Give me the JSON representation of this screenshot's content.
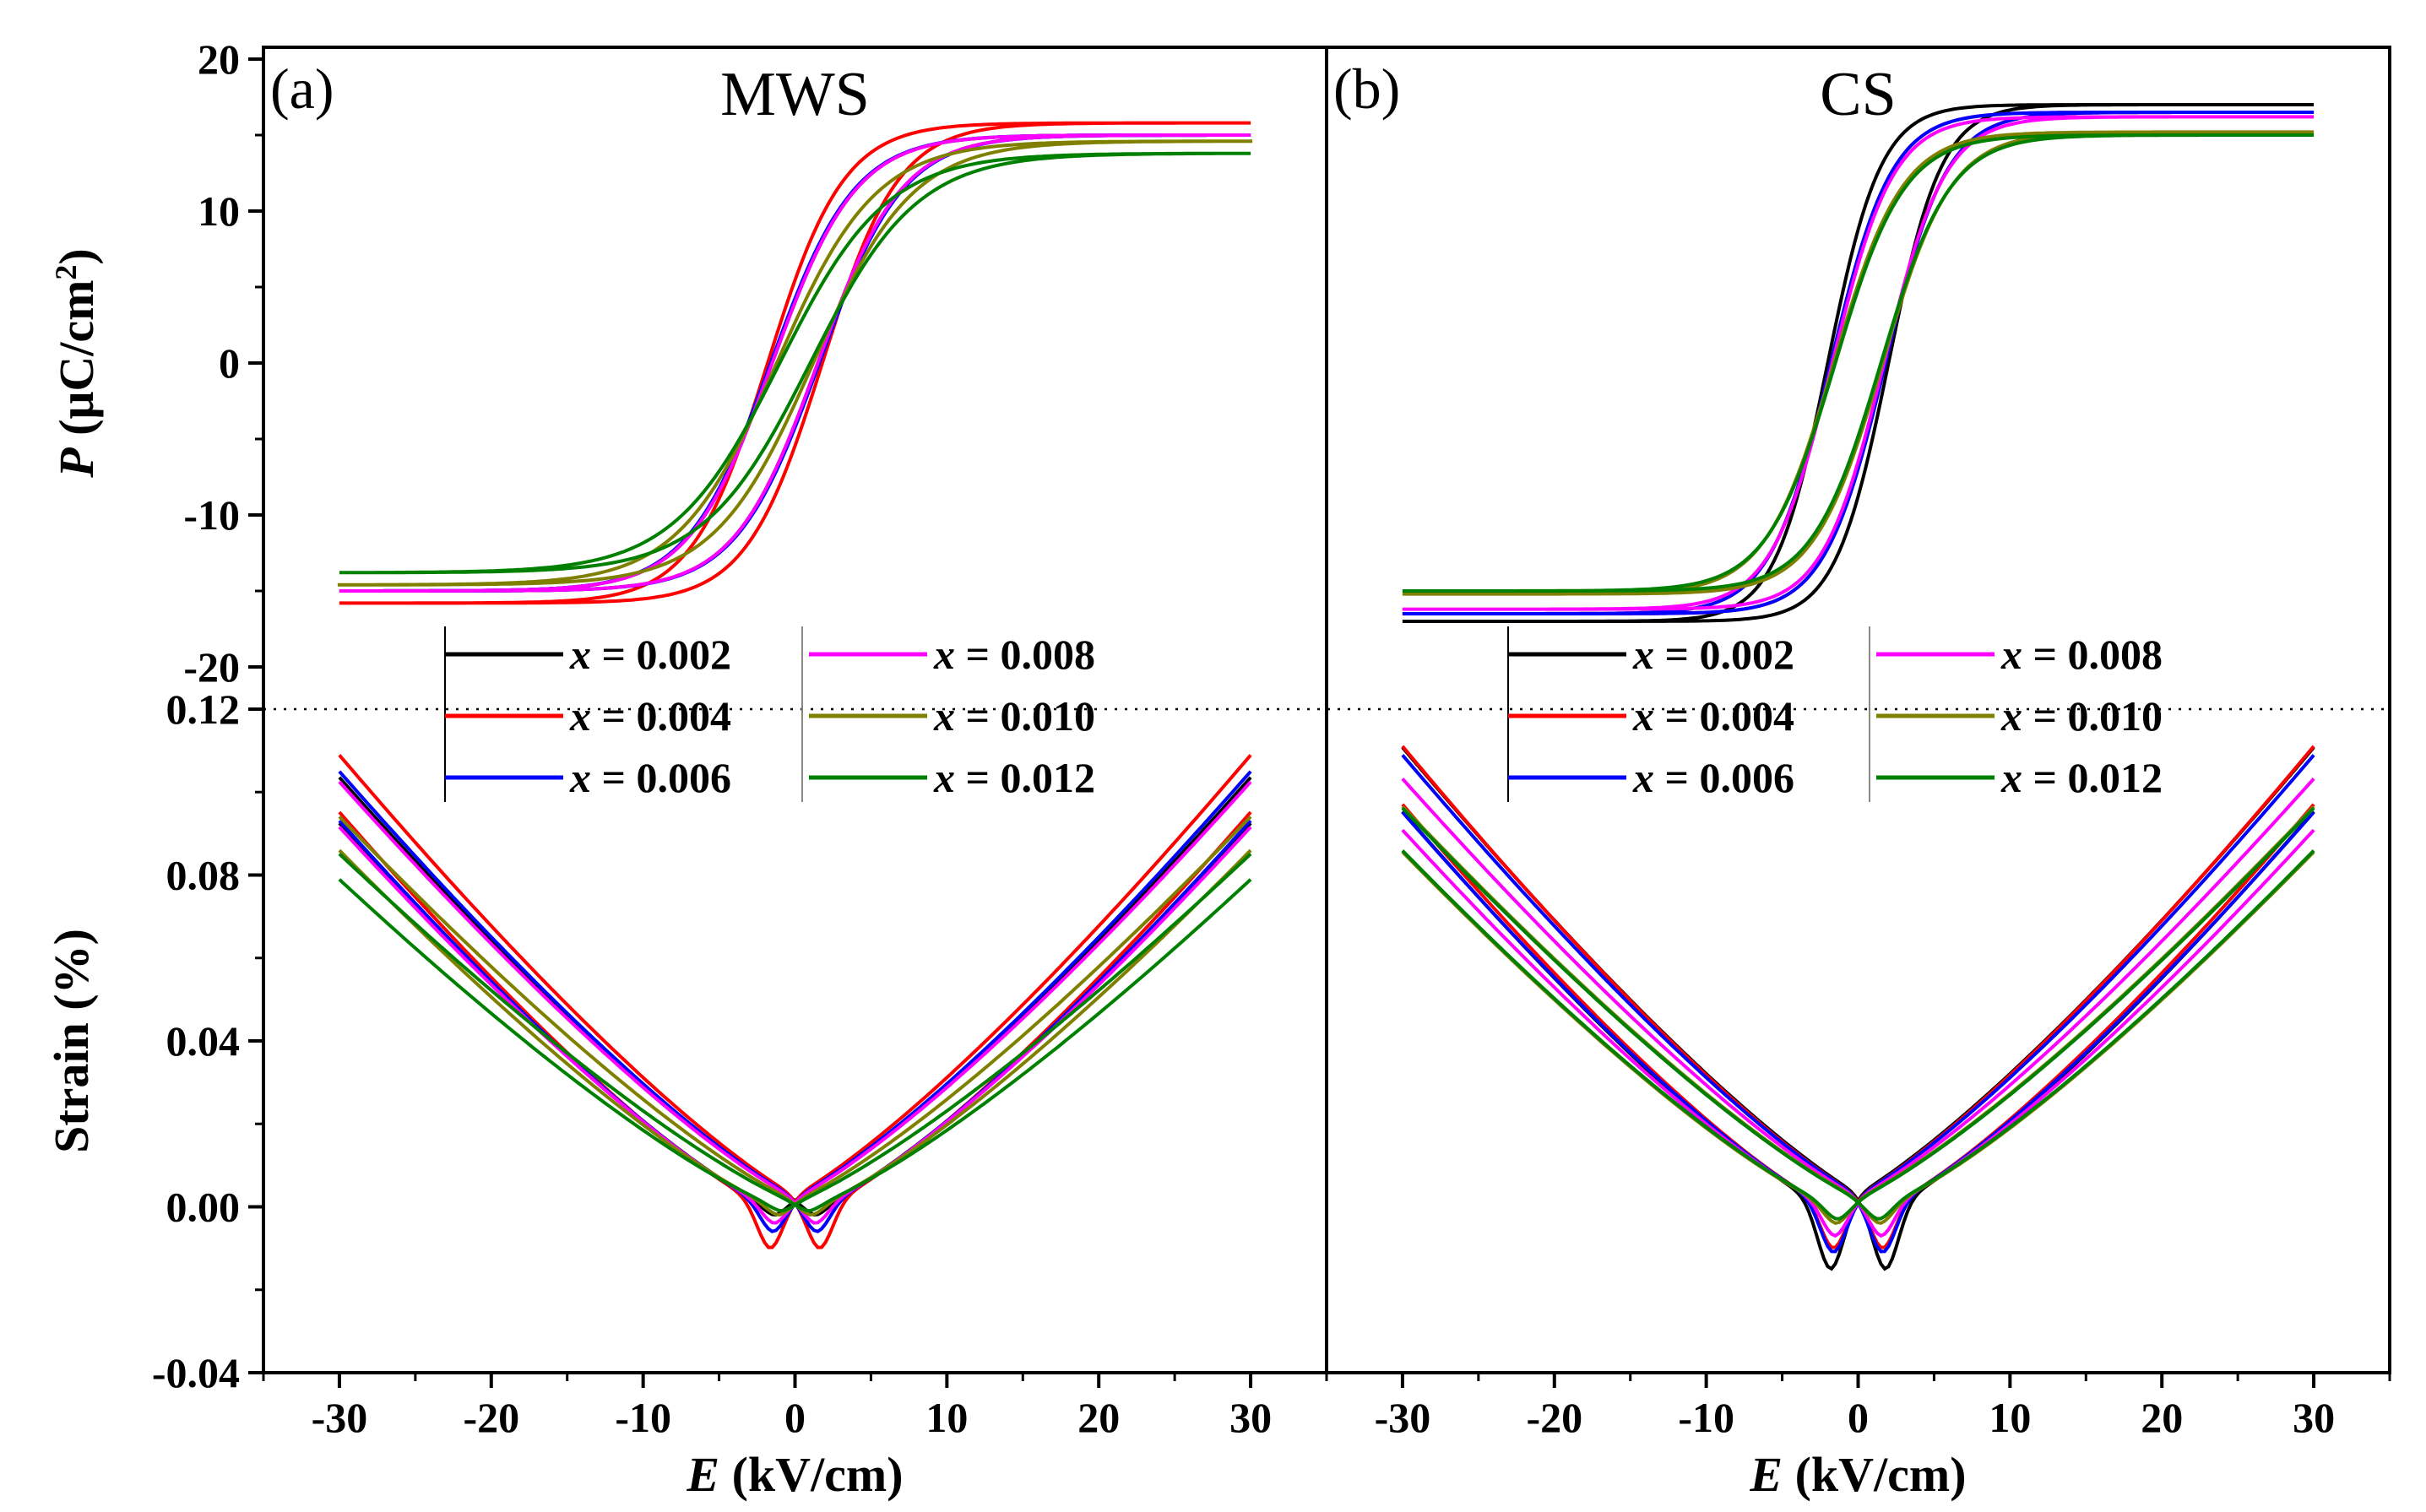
{
  "chart_data": {
    "type": "line",
    "figure": "P-E hysteresis loops (top) and bipolar strain curves (bottom) for MWS and CS samples",
    "panels": [
      {
        "id": "a",
        "label": "(a)",
        "title": "MWS"
      },
      {
        "id": "b",
        "label": "(b)",
        "title": "CS"
      }
    ],
    "x_axis": {
      "label_symbol": "E",
      "label_unit": " (kV/cm)",
      "range": [
        -35,
        35
      ],
      "ticks": [
        -30,
        -20,
        -10,
        0,
        10,
        20,
        30
      ],
      "tick_labels": [
        "-30",
        "-20",
        "-10",
        "0",
        "10",
        "20",
        "30"
      ]
    },
    "polarization_axis": {
      "label_symbol": "P",
      "label_unit": " (μC/cm",
      "label_sup": "2",
      "label_close": ")",
      "range": [
        -22,
        20
      ],
      "ticks": [
        -20,
        -10,
        0,
        10,
        20
      ],
      "tick_labels": [
        "-20",
        "-10",
        "0",
        "10",
        "20"
      ]
    },
    "strain_axis": {
      "label": "Strain (%)",
      "range": [
        -0.04,
        0.12
      ],
      "ticks": [
        -0.04,
        0.0,
        0.04,
        0.08,
        0.12
      ],
      "tick_labels": [
        "-0.04",
        "0.00",
        "0.04",
        "0.08",
        "0.12"
      ]
    },
    "legend": [
      {
        "symbol": "x",
        "text": " = 0.002",
        "color": "#000000"
      },
      {
        "symbol": "x",
        "text": " = 0.004",
        "color": "#ff0000"
      },
      {
        "symbol": "x",
        "text": " = 0.006",
        "color": "#0000ff"
      },
      {
        "symbol": "x",
        "text": " = 0.008",
        "color": "#ff00ff"
      },
      {
        "symbol": "x",
        "text": " = 0.010",
        "color": "#808000"
      },
      {
        "symbol": "x",
        "text": " = 0.012",
        "color": "#008000"
      }
    ],
    "series": {
      "MWS": [
        {
          "x": "0.002",
          "color": "#000000",
          "Pmax": 15.0,
          "Pr": 4.0,
          "Ec": 1.5,
          "s": 5.5,
          "Smax": 0.098,
          "Sneg": -0.002
        },
        {
          "x": "0.004",
          "color": "#ff0000",
          "Pmax": 15.8,
          "Pr": 5.5,
          "Ec": 1.8,
          "s": 5.0,
          "Smax": 0.102,
          "Sneg": -0.01
        },
        {
          "x": "0.006",
          "color": "#0000ff",
          "Pmax": 15.0,
          "Pr": 4.8,
          "Ec": 1.6,
          "s": 5.5,
          "Smax": 0.099,
          "Sneg": -0.006
        },
        {
          "x": "0.008",
          "color": "#ff00ff",
          "Pmax": 15.0,
          "Pr": 4.5,
          "Ec": 1.5,
          "s": 5.5,
          "Smax": 0.097,
          "Sneg": -0.004
        },
        {
          "x": "0.010",
          "color": "#808000",
          "Pmax": 14.6,
          "Pr": 3.5,
          "Ec": 1.2,
          "s": 6.5,
          "Smax": 0.09,
          "Sneg": -0.002
        },
        {
          "x": "0.012",
          "color": "#008000",
          "Pmax": 13.8,
          "Pr": 3.0,
          "Ec": 1.0,
          "s": 7.0,
          "Smax": 0.082,
          "Sneg": -0.001
        }
      ],
      "CS": [
        {
          "x": "0.002",
          "color": "#000000",
          "Pmax": 17.0,
          "Pr": 9.5,
          "Ec": 2.0,
          "s": 3.5,
          "Smax": 0.103,
          "Sneg": -0.015
        },
        {
          "x": "0.004",
          "color": "#ff0000",
          "Pmax": 16.5,
          "Pr": 8.5,
          "Ec": 1.8,
          "s": 4.0,
          "Smax": 0.104,
          "Sneg": -0.01
        },
        {
          "x": "0.006",
          "color": "#0000ff",
          "Pmax": 16.5,
          "Pr": 8.0,
          "Ec": 1.8,
          "s": 4.0,
          "Smax": 0.102,
          "Sneg": -0.011
        },
        {
          "x": "0.008",
          "color": "#ff00ff",
          "Pmax": 16.2,
          "Pr": 8.0,
          "Ec": 1.7,
          "s": 4.0,
          "Smax": 0.097,
          "Sneg": -0.007
        },
        {
          "x": "0.010",
          "color": "#808000",
          "Pmax": 15.2,
          "Pr": 6.5,
          "Ec": 1.6,
          "s": 4.5,
          "Smax": 0.091,
          "Sneg": -0.004
        },
        {
          "x": "0.012",
          "color": "#008000",
          "Pmax": 15.0,
          "Pr": 6.0,
          "Ec": 1.5,
          "s": 4.5,
          "Smax": 0.091,
          "Sneg": -0.003
        }
      ]
    }
  }
}
